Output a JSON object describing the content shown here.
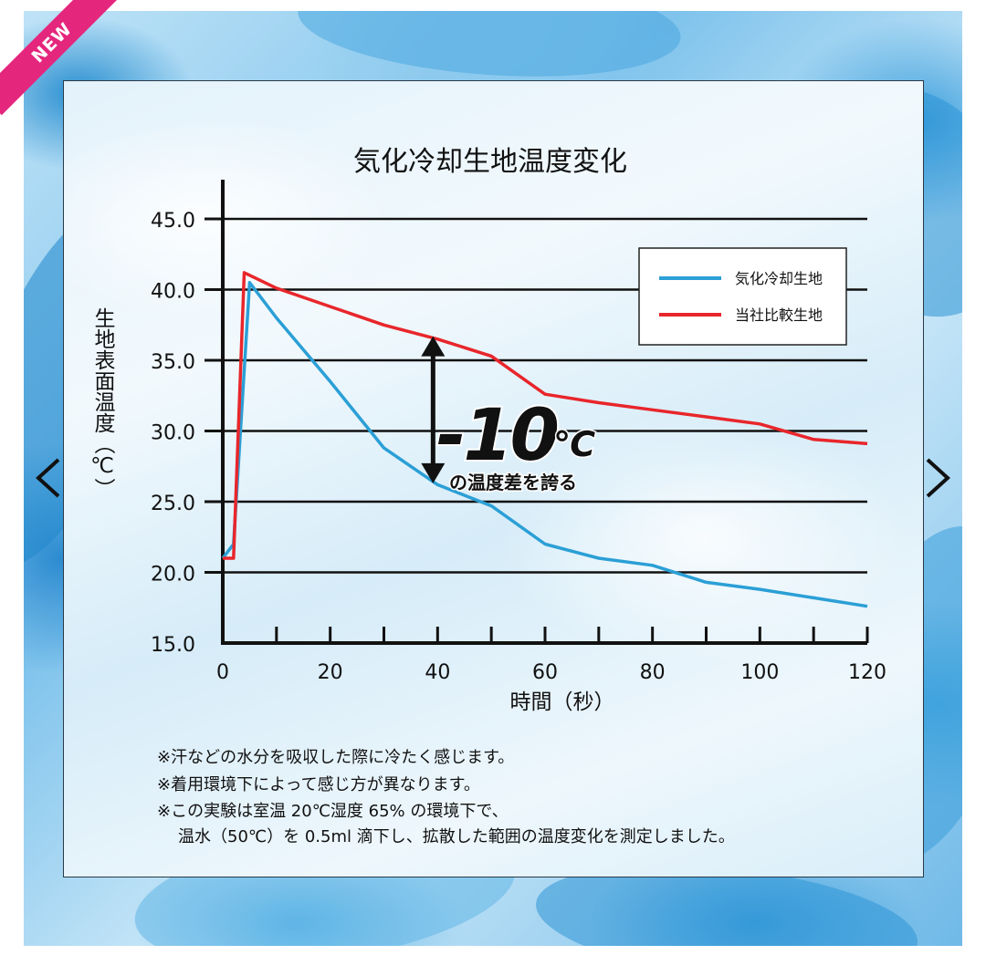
{
  "badge": {
    "label": "NEW"
  },
  "navigation": {
    "prev_icon": "chevron-left-icon",
    "next_icon": "chevron-right-icon"
  },
  "colors": {
    "series_blue": "#2b9fd6",
    "series_red": "#e8262b",
    "badge": "#e5267d",
    "callout": "#111111"
  },
  "chart_data": {
    "type": "line",
    "title": "気化冷却生地温度変化",
    "xlabel": "時間（秒）",
    "ylabel": "生地表面温度（℃）",
    "xlim": [
      0,
      120
    ],
    "ylim": [
      15,
      45
    ],
    "x_ticks": [
      "0",
      "20",
      "40",
      "60",
      "80",
      "100",
      "120"
    ],
    "x_tick_values": [
      0,
      20,
      40,
      60,
      80,
      100,
      120
    ],
    "x_minor_ticks": [
      10,
      30,
      50,
      70,
      90,
      110
    ],
    "y_ticks": [
      "15.0",
      "20.0",
      "25.0",
      "30.0",
      "35.0",
      "40.0",
      "45.0"
    ],
    "y_tick_values": [
      15,
      20,
      25,
      30,
      35,
      40,
      45
    ],
    "grid": true,
    "legend": "top-right",
    "series": [
      {
        "name": "気化冷却生地",
        "color": "#2b9fd6",
        "x": [
          0,
          2,
          5,
          10,
          20,
          30,
          40,
          50,
          60,
          70,
          80,
          90,
          100,
          110,
          120
        ],
        "y": [
          21.0,
          22.0,
          40.5,
          38.0,
          33.5,
          28.8,
          26.2,
          24.7,
          22.0,
          21.0,
          20.5,
          19.3,
          18.8,
          18.2,
          17.6
        ]
      },
      {
        "name": "当社比較生地",
        "color": "#e8262b",
        "x": [
          0,
          2,
          4,
          10,
          20,
          30,
          40,
          50,
          60,
          70,
          80,
          90,
          100,
          110,
          120
        ],
        "y": [
          21.0,
          21.0,
          41.2,
          40.1,
          38.8,
          37.5,
          36.5,
          35.3,
          32.6,
          32.0,
          31.5,
          31.0,
          30.5,
          29.4,
          29.1
        ]
      }
    ],
    "annotation": {
      "big_text": "-10",
      "unit": "℃",
      "sub_text": "の温度差を誇る",
      "arrow_x": 40,
      "arrow_y_top": 36.7,
      "arrow_y_bottom": 26.3
    },
    "notes": [
      "※汗などの水分を吸収した際に冷たく感じます。",
      "※着用環境下によって感じ方が異なります。",
      "※この実験は室温 20℃湿度 65% の環境下で、",
      "温水（50℃）を 0.5ml 滴下し、拡散した範囲の温度変化を測定しました。"
    ]
  }
}
